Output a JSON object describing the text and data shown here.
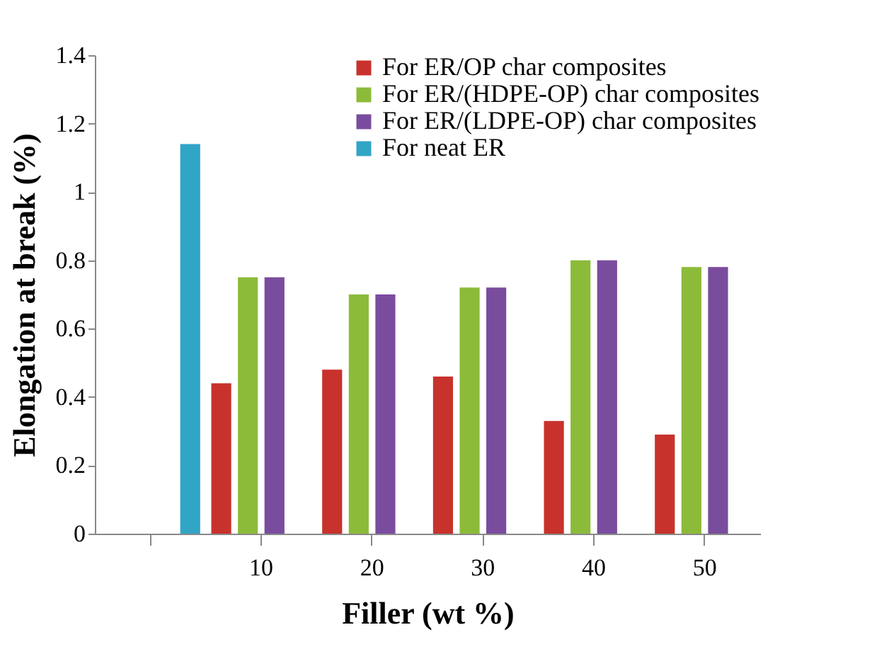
{
  "chart_data": {
    "type": "bar",
    "xlabel": "Filler (wt %)",
    "ylabel": "Elongation at break (%)",
    "categories": [
      null,
      "10",
      "20",
      "30",
      "40",
      "50"
    ],
    "series": [
      {
        "name": "For ER/OP char composites",
        "color": "#c8322c",
        "values": [
          null,
          0.44,
          0.48,
          0.46,
          0.33,
          0.29
        ]
      },
      {
        "name": "For ER/(HDPE-OP) char composites",
        "color": "#8cbb3a",
        "values": [
          null,
          0.75,
          0.7,
          0.72,
          0.8,
          0.78
        ]
      },
      {
        "name": "For ER/(LDPE-OP) char composites",
        "color": "#7a4c9e",
        "values": [
          null,
          0.75,
          0.7,
          0.72,
          0.8,
          0.78
        ]
      },
      {
        "name": "For neat ER",
        "color": "#31a5c6",
        "values": [
          1.14,
          null,
          null,
          null,
          null,
          null
        ]
      }
    ],
    "ylim": [
      0,
      1.4
    ],
    "yticks": [
      0,
      0.2,
      0.4,
      0.6,
      0.8,
      1,
      1.2,
      1.4
    ],
    "grid": false,
    "legend": "top right"
  }
}
